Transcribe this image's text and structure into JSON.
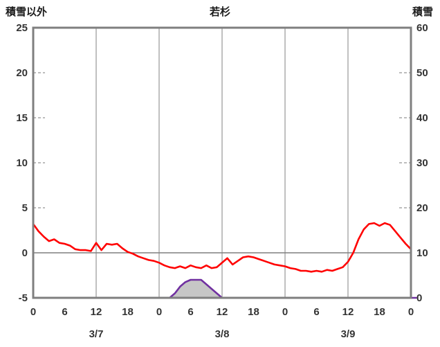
{
  "chart_data": {
    "type": "line",
    "title": "若杉",
    "left_axis": {
      "label": "積雪以外",
      "min": -5,
      "max": 25,
      "ticks": [
        25,
        20,
        15,
        10,
        5,
        0,
        -5
      ],
      "dash_values": [
        20,
        15,
        10,
        5
      ]
    },
    "right_axis": {
      "label": "積雪",
      "min": 0,
      "max": 60,
      "ticks": [
        60,
        50,
        40,
        30,
        20,
        10,
        0
      ]
    },
    "x_axis": {
      "min": 0,
      "max": 72,
      "tick_interval": 6,
      "tick_labels": [
        "0",
        "6",
        "12",
        "18",
        "0",
        "6",
        "12",
        "18",
        "0",
        "6",
        "12",
        "18",
        "0"
      ],
      "day_labels": [
        {
          "label": "3/7",
          "hour": 12
        },
        {
          "label": "3/8",
          "hour": 36
        },
        {
          "label": "3/9",
          "hour": 60
        }
      ],
      "gridline_hours": [
        12,
        24,
        36,
        48,
        60
      ]
    },
    "zero_line_left_value": 0,
    "colors": {
      "grid": "#a6a6a6",
      "border": "#7f7f7f",
      "zero_line": "#7f7f7f",
      "temperature": "#ff0000",
      "snow_depth": "#7030a0",
      "snow_fill": "#c6c6c6"
    },
    "series": [
      {
        "name": "temperature",
        "axis": "left",
        "color": "#ff0000",
        "x0": 0,
        "dx": 1,
        "y": [
          3.2,
          2.4,
          1.8,
          1.3,
          1.5,
          1.1,
          1.0,
          0.8,
          0.4,
          0.3,
          0.3,
          0.2,
          1.1,
          0.3,
          1.0,
          0.9,
          1.0,
          0.5,
          0.1,
          -0.1,
          -0.4,
          -0.6,
          -0.8,
          -0.9,
          -1.1,
          -1.4,
          -1.6,
          -1.7,
          -1.5,
          -1.7,
          -1.4,
          -1.6,
          -1.7,
          -1.4,
          -1.7,
          -1.6,
          -1.1,
          -0.6,
          -1.3,
          -0.9,
          -0.5,
          -0.4,
          -0.5,
          -0.7,
          -0.9,
          -1.1,
          -1.3,
          -1.4,
          -1.5,
          -1.7,
          -1.8,
          -2.0,
          -2.0,
          -2.1,
          -2.0,
          -2.1,
          -1.9,
          -2.0,
          -1.8,
          -1.6,
          -1.0,
          0.0,
          1.5,
          2.6,
          3.2,
          3.3,
          3.0,
          3.3,
          3.1,
          2.4,
          1.7,
          1.0,
          0.4
        ]
      },
      {
        "name": "snow-depth",
        "axis": "right",
        "color": "#7030a0",
        "fill": "#c6c6c6",
        "x0": 0,
        "dx": 1,
        "y": [
          0,
          0,
          0,
          0,
          0,
          0,
          0,
          0,
          0,
          0,
          0,
          0,
          0,
          0,
          0,
          0,
          0,
          0,
          0,
          0,
          0,
          0,
          0,
          0,
          0,
          0,
          0,
          1,
          2.5,
          3.5,
          4,
          4,
          4,
          3,
          2,
          1,
          0,
          0,
          0,
          0,
          0,
          0,
          0,
          0,
          0,
          0,
          0,
          0,
          0,
          0,
          0,
          0,
          0,
          0,
          0,
          0,
          0,
          0,
          0,
          0,
          0,
          0,
          0,
          0,
          0,
          0,
          0,
          0,
          0,
          0,
          0,
          0,
          0,
          0
        ]
      }
    ]
  }
}
